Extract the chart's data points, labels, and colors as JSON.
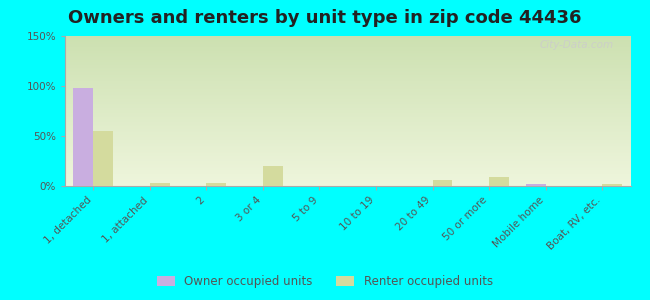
{
  "title": "Owners and renters by unit type in zip code 44436",
  "categories": [
    "1, detached",
    "1, attached",
    "2",
    "3 or 4",
    "5 to 9",
    "10 to 19",
    "20 to 49",
    "50 or more",
    "Mobile home",
    "Boat, RV, etc."
  ],
  "owner_values": [
    98,
    0,
    0,
    0,
    0,
    0,
    0,
    0,
    2,
    0
  ],
  "renter_values": [
    55,
    3,
    3,
    20,
    0,
    0,
    6,
    9,
    0,
    2
  ],
  "owner_color": "#c9aee0",
  "renter_color": "#d4db9e",
  "background_color": "#00ffff",
  "grad_top_color": "#cce0b0",
  "grad_bot_color": "#eef5dc",
  "ylim": [
    0,
    150
  ],
  "yticks": [
    0,
    50,
    100,
    150
  ],
  "ytick_labels": [
    "0%",
    "50%",
    "100%",
    "150%"
  ],
  "watermark": "City-Data.com",
  "legend_owner": "Owner occupied units",
  "legend_renter": "Renter occupied units",
  "title_fontsize": 13,
  "tick_fontsize": 7.5,
  "bar_width": 0.35
}
